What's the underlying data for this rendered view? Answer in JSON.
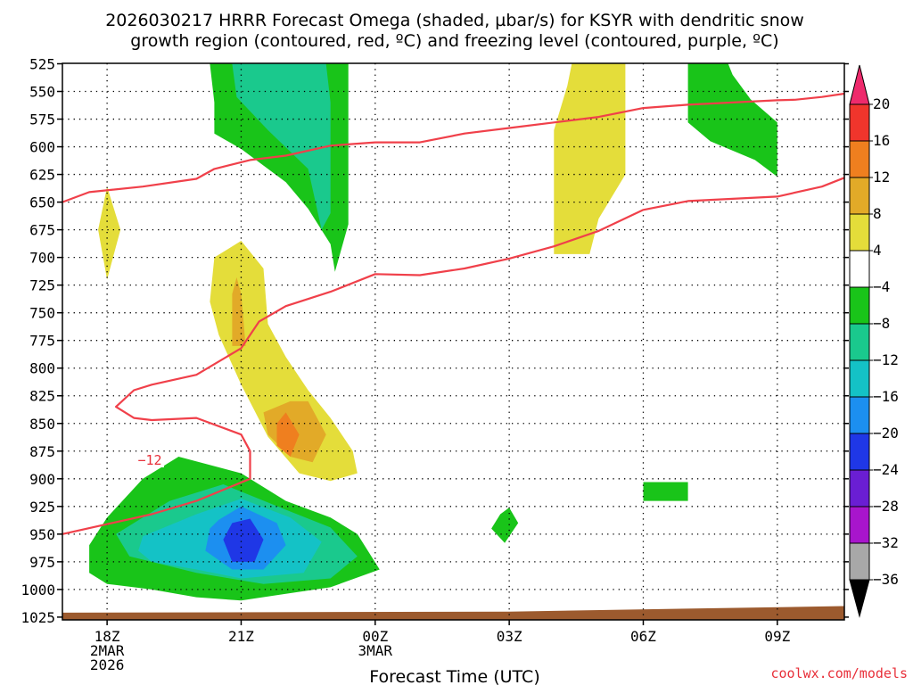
{
  "chart_data": {
    "type": "time-height",
    "title_line1": "2026030217 HRRR Forecast Omega (shaded, µbar/s) for KSYR with dendritic snow",
    "title_line2": "growth region (contoured, red, ºC) and freezing level (contoured, purple, ºC)",
    "xlabel": "Forecast Time (UTC)",
    "watermark": "coolwx.com/models",
    "x_range_hours_from_18Z": [
      -1.0,
      16.5
    ],
    "pressure_levels": [
      525,
      550,
      575,
      600,
      625,
      650,
      675,
      700,
      725,
      750,
      775,
      800,
      825,
      850,
      875,
      900,
      925,
      950,
      975,
      1000,
      1025
    ],
    "x_ticks": [
      {
        "hour": 0,
        "lines": [
          "18Z",
          "2MAR",
          "2026"
        ]
      },
      {
        "hour": 3,
        "lines": [
          "21Z"
        ]
      },
      {
        "hour": 6,
        "lines": [
          "00Z",
          "3MAR"
        ]
      },
      {
        "hour": 9,
        "lines": [
          "03Z"
        ]
      },
      {
        "hour": 12,
        "lines": [
          "06Z"
        ]
      },
      {
        "hour": 15,
        "lines": [
          "09Z"
        ]
      }
    ],
    "colorbar": {
      "labels": [
        "20",
        "16",
        "12",
        "8",
        "4",
        "−4",
        "−8",
        "−12",
        "−16",
        "−20",
        "−24",
        "−28",
        "−32",
        "−36"
      ],
      "colors": [
        "#ee2a6c",
        "#f0352c",
        "#ef7f1f",
        "#e2aa28",
        "#e4dd3a",
        "#ffffff",
        "#19c419",
        "#1ac98d",
        "#14c2c6",
        "#1c8ff0",
        "#1f37e6",
        "#6a1ed3",
        "#a815cc",
        "#a8a8a8",
        "#000000"
      ]
    },
    "contour_label": "−12",
    "contours": [
      {
        "name": "dendritic-upper",
        "color": "#f0404a",
        "points": [
          [
            -1.0,
            650
          ],
          [
            -0.4,
            641
          ],
          [
            0.8,
            636
          ],
          [
            2.0,
            629
          ],
          [
            2.4,
            620
          ],
          [
            3.2,
            612
          ],
          [
            4.0,
            608
          ],
          [
            5.0,
            599
          ],
          [
            6.0,
            596
          ],
          [
            7.0,
            596
          ],
          [
            8.0,
            588
          ],
          [
            9.0,
            583
          ],
          [
            10.0,
            578
          ],
          [
            11.0,
            573
          ],
          [
            12.0,
            565
          ],
          [
            13.0,
            562
          ],
          [
            14.0,
            560
          ],
          [
            15.0,
            558
          ],
          [
            15.4,
            557.5
          ],
          [
            16.0,
            555
          ],
          [
            16.5,
            552
          ]
        ]
      },
      {
        "name": "dendritic-lower",
        "color": "#f0404a",
        "points": [
          [
            16.5,
            628
          ],
          [
            16.0,
            636
          ],
          [
            15.0,
            645
          ],
          [
            14.0,
            647
          ],
          [
            13.0,
            649
          ],
          [
            12.0,
            657
          ],
          [
            11.0,
            676
          ],
          [
            10.0,
            690
          ],
          [
            9.0,
            701
          ],
          [
            8.0,
            710
          ],
          [
            7.0,
            716
          ],
          [
            6.0,
            715
          ],
          [
            5.0,
            731
          ],
          [
            4.0,
            744
          ],
          [
            3.4,
            758
          ],
          [
            3.0,
            782
          ],
          [
            2.0,
            806
          ],
          [
            1.0,
            815
          ],
          [
            0.6,
            820
          ],
          [
            0.2,
            835
          ],
          [
            0.6,
            845
          ],
          [
            1.0,
            847
          ],
          [
            2.0,
            845
          ],
          [
            3.0,
            860
          ],
          [
            3.2,
            875
          ],
          [
            3.2,
            900
          ],
          [
            2.0,
            920
          ],
          [
            1.0,
            932
          ],
          [
            -1.0,
            950
          ]
        ]
      }
    ],
    "brown_terrain_top": [
      [
        -1.0,
        1021
      ],
      [
        9.0,
        1020
      ],
      [
        16.5,
        1015
      ]
    ],
    "shading": [
      {
        "name": "green-upper",
        "color": "#19c419",
        "points": [
          [
            2.3,
            525
          ],
          [
            3.4,
            525
          ],
          [
            5.0,
            525
          ],
          [
            5.4,
            525
          ],
          [
            5.4,
            670
          ],
          [
            5.1,
            713
          ],
          [
            5.0,
            688
          ],
          [
            4.5,
            656
          ],
          [
            4.0,
            632
          ],
          [
            3.0,
            602
          ],
          [
            2.4,
            588
          ],
          [
            2.4,
            560
          ]
        ]
      },
      {
        "name": "teal-upper",
        "color": "#1ac98d",
        "points": [
          [
            2.8,
            525
          ],
          [
            4.6,
            525
          ],
          [
            4.9,
            525
          ],
          [
            5.0,
            560
          ],
          [
            5.0,
            660
          ],
          [
            4.8,
            675
          ],
          [
            4.5,
            620
          ],
          [
            3.6,
            585
          ],
          [
            2.9,
            555
          ]
        ]
      },
      {
        "name": "yellow-04z",
        "color": "#e4dd3a",
        "points": [
          [
            10.4,
            525
          ],
          [
            11.6,
            525
          ],
          [
            11.6,
            625
          ],
          [
            11.0,
            665
          ],
          [
            10.8,
            697
          ],
          [
            10.0,
            697
          ],
          [
            10.0,
            640
          ],
          [
            10.0,
            585
          ],
          [
            10.3,
            545
          ]
        ]
      },
      {
        "name": "green-09z",
        "color": "#19c419",
        "points": [
          [
            13.0,
            525
          ],
          [
            13.9,
            525
          ],
          [
            14.0,
            535
          ],
          [
            14.4,
            557
          ],
          [
            15.0,
            578
          ],
          [
            15.0,
            610
          ],
          [
            15.0,
            627
          ],
          [
            14.5,
            612
          ],
          [
            13.5,
            595
          ],
          [
            13.0,
            578
          ]
        ]
      },
      {
        "name": "yellow-18z",
        "color": "#e4dd3a",
        "points": [
          [
            0.0,
            636
          ],
          [
            0.3,
            675
          ],
          [
            0.0,
            720
          ],
          [
            -0.2,
            675
          ]
        ]
      },
      {
        "name": "yellow-mid",
        "color": "#e4dd3a",
        "points": [
          [
            3.0,
            685
          ],
          [
            3.5,
            710
          ],
          [
            3.6,
            760
          ],
          [
            4.0,
            790
          ],
          [
            4.5,
            820
          ],
          [
            5.0,
            845
          ],
          [
            5.5,
            875
          ],
          [
            5.6,
            895
          ],
          [
            5.0,
            902
          ],
          [
            4.3,
            895
          ],
          [
            3.6,
            862
          ],
          [
            3.0,
            815
          ],
          [
            2.5,
            770
          ],
          [
            2.3,
            740
          ],
          [
            2.4,
            700
          ]
        ]
      },
      {
        "name": "orange-21z",
        "color": "#e2aa28",
        "points": [
          [
            2.9,
            718
          ],
          [
            3.0,
            733
          ],
          [
            3.1,
            780
          ],
          [
            2.8,
            780
          ],
          [
            2.8,
            733
          ]
        ]
      },
      {
        "name": "orange-22z",
        "color": "#e2aa28",
        "points": [
          [
            4.1,
            830
          ],
          [
            4.5,
            830
          ],
          [
            4.9,
            860
          ],
          [
            4.6,
            885
          ],
          [
            4.1,
            880
          ],
          [
            3.6,
            860
          ],
          [
            3.5,
            840
          ]
        ]
      },
      {
        "name": "red-22z",
        "color": "#ef7f1f",
        "points": [
          [
            4.0,
            840
          ],
          [
            4.3,
            860
          ],
          [
            4.1,
            880
          ],
          [
            3.8,
            870
          ],
          [
            3.8,
            850
          ]
        ]
      },
      {
        "name": "green-06z",
        "color": "#19c419",
        "points": [
          [
            12.0,
            903
          ],
          [
            13.0,
            903
          ],
          [
            13.0,
            920
          ],
          [
            12.0,
            920
          ]
        ]
      },
      {
        "name": "green-03z",
        "color": "#19c419",
        "points": [
          [
            9.0,
            926
          ],
          [
            9.2,
            940
          ],
          [
            8.9,
            958
          ],
          [
            8.6,
            945
          ],
          [
            8.8,
            932
          ]
        ]
      },
      {
        "name": "green-low",
        "color": "#19c419",
        "points": [
          [
            -0.4,
            960
          ],
          [
            0.0,
            935
          ],
          [
            0.8,
            900
          ],
          [
            1.6,
            880
          ],
          [
            3.0,
            895
          ],
          [
            4.0,
            920
          ],
          [
            5.0,
            935
          ],
          [
            5.6,
            950
          ],
          [
            6.1,
            982
          ],
          [
            5.0,
            998
          ],
          [
            4.0,
            1004
          ],
          [
            3.0,
            1010
          ],
          [
            2.0,
            1007
          ],
          [
            1.0,
            1000
          ],
          [
            0.0,
            995
          ],
          [
            -0.4,
            985
          ]
        ]
      },
      {
        "name": "teal-low",
        "color": "#1ac98d",
        "points": [
          [
            0.2,
            950
          ],
          [
            1.4,
            920
          ],
          [
            2.6,
            905
          ],
          [
            4.0,
            928
          ],
          [
            5.0,
            944
          ],
          [
            5.6,
            970
          ],
          [
            5.0,
            990
          ],
          [
            3.5,
            995
          ],
          [
            2.0,
            985
          ],
          [
            1.0,
            975
          ],
          [
            0.5,
            970
          ]
        ]
      },
      {
        "name": "cyan-low",
        "color": "#14c2c6",
        "points": [
          [
            0.8,
            952
          ],
          [
            2.0,
            932
          ],
          [
            3.0,
            918
          ],
          [
            4.1,
            935
          ],
          [
            4.8,
            957
          ],
          [
            4.4,
            985
          ],
          [
            3.0,
            990
          ],
          [
            2.0,
            982
          ],
          [
            1.0,
            975
          ],
          [
            0.7,
            965
          ]
        ]
      },
      {
        "name": "blue-low",
        "color": "#1c8ff0",
        "points": [
          [
            2.5,
            937
          ],
          [
            3.0,
            925
          ],
          [
            3.8,
            940
          ],
          [
            4.0,
            960
          ],
          [
            3.5,
            982
          ],
          [
            2.8,
            982
          ],
          [
            2.2,
            965
          ],
          [
            2.3,
            945
          ]
        ]
      },
      {
        "name": "dark-blue-low",
        "color": "#1f37e6",
        "points": [
          [
            2.8,
            940
          ],
          [
            3.2,
            936
          ],
          [
            3.5,
            955
          ],
          [
            3.3,
            975
          ],
          [
            2.8,
            975
          ],
          [
            2.6,
            955
          ]
        ]
      }
    ]
  }
}
